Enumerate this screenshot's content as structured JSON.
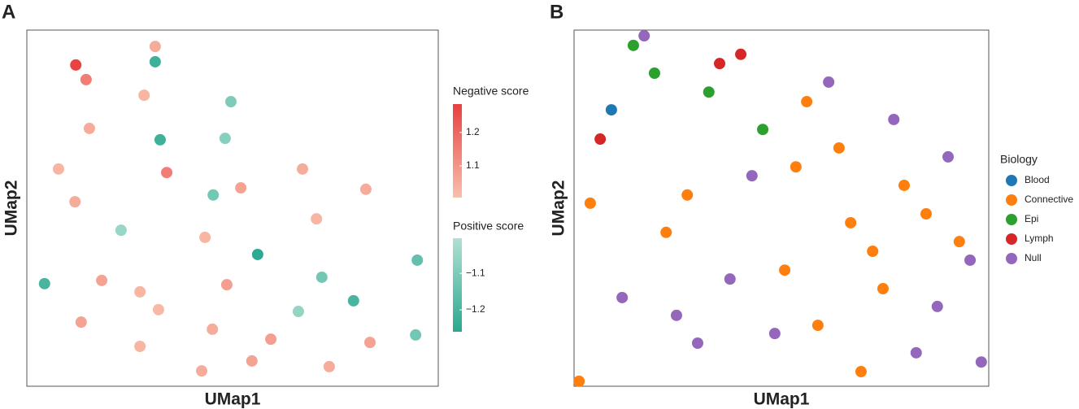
{
  "chart_data": [
    {
      "type": "scatter",
      "panel": "A",
      "xlabel": "UMap1",
      "ylabel": "UMap2",
      "xlim": [
        0,
        100
      ],
      "ylim": [
        0,
        100
      ],
      "series": [
        {
          "name": "Negative score",
          "colors": [
            "#f8c0ac",
            "#e8413f"
          ],
          "clim": [
            1.005,
            1.285
          ],
          "cticks": [
            1.1,
            1.2
          ],
          "x": [
            31.2,
            11.9,
            14.4,
            28.5,
            15.2,
            7.7,
            34.0,
            67.0,
            82.4,
            52.0,
            11.7,
            70.4,
            43.3,
            18.2,
            27.5,
            48.6,
            32.0,
            13.2,
            45.1,
            59.3,
            27.5,
            83.4,
            54.7,
            42.5,
            73.5
          ],
          "y": [
            95.4,
            90.2,
            86.1,
            81.7,
            72.4,
            61.0,
            60.0,
            61.0,
            55.3,
            55.7,
            51.8,
            47.0,
            41.8,
            29.7,
            26.5,
            28.5,
            21.5,
            18.0,
            16.0,
            13.2,
            11.2,
            12.3,
            7.1,
            4.3,
            5.5
          ],
          "values": [
            1.05,
            1.28,
            1.15,
            1.03,
            1.05,
            1.03,
            1.15,
            1.05,
            1.05,
            1.07,
            1.05,
            1.03,
            1.03,
            1.07,
            1.03,
            1.08,
            1.02,
            1.07,
            1.05,
            1.08,
            1.03,
            1.07,
            1.07,
            1.05,
            1.05
          ]
        },
        {
          "name": "Positive score",
          "colors": [
            "#2aa88f",
            "#b0e0d4"
          ],
          "clim": [
            -1.26,
            -1.004
          ],
          "cticks": [
            {
              "value": -1.1,
              "label": "−1.1"
            },
            {
              "value": -1.2,
              "label": "−1.2"
            }
          ],
          "x": [
            31.2,
            49.6,
            32.4,
            48.2,
            45.3,
            22.9,
            56.1,
            94.9,
            4.3,
            71.7,
            66.0,
            79.4,
            94.5
          ],
          "y": [
            91.1,
            79.9,
            69.2,
            69.6,
            53.7,
            43.8,
            37.0,
            35.4,
            28.8,
            30.6,
            21.0,
            24.0,
            14.4
          ],
          "values": [
            -1.22,
            -1.1,
            -1.22,
            -1.08,
            -1.12,
            -1.05,
            -1.25,
            -1.15,
            -1.2,
            -1.12,
            -1.06,
            -1.2,
            -1.12
          ]
        }
      ]
    },
    {
      "type": "scatter",
      "panel": "B",
      "xlabel": "UMap1",
      "ylabel": "UMap2",
      "xlim": [
        0,
        100
      ],
      "ylim": [
        0,
        100
      ],
      "legend_title": "Biology",
      "series": [
        {
          "name": "Blood",
          "color": "#1f77b4",
          "x": [
            9.0
          ],
          "y": [
            77.6
          ]
        },
        {
          "name": "Connective",
          "color": "#ff7f0e",
          "x": [
            56.1,
            63.9,
            53.5,
            27.3,
            3.9,
            79.6,
            84.9,
            66.7,
            22.2,
            92.9,
            72.0,
            50.8,
            74.5,
            58.8,
            1.2,
            69.2
          ],
          "y": [
            79.9,
            66.9,
            61.6,
            53.7,
            51.4,
            56.4,
            48.4,
            45.9,
            43.2,
            40.6,
            37.9,
            32.6,
            27.4,
            17.1,
            1.4,
            4.1
          ]
        },
        {
          "name": "Epi",
          "color": "#2ca02c",
          "x": [
            14.3,
            19.4,
            32.5,
            45.5
          ],
          "y": [
            95.7,
            87.9,
            82.6,
            72.1
          ]
        },
        {
          "name": "Lymph",
          "color": "#d62728",
          "x": [
            35.1,
            40.2,
            6.3
          ],
          "y": [
            90.6,
            93.2,
            69.4
          ]
        },
        {
          "name": "Null",
          "color": "#9467bd",
          "x": [
            16.9,
            61.4,
            77.1,
            90.2,
            42.9,
            95.5,
            37.6,
            11.6,
            87.6,
            24.7,
            48.4,
            29.8,
            82.5,
            98.2
          ],
          "y": [
            98.4,
            85.4,
            74.9,
            64.4,
            59.1,
            35.4,
            30.1,
            24.9,
            22.4,
            19.9,
            14.8,
            12.1,
            9.4,
            6.8
          ]
        }
      ]
    }
  ]
}
